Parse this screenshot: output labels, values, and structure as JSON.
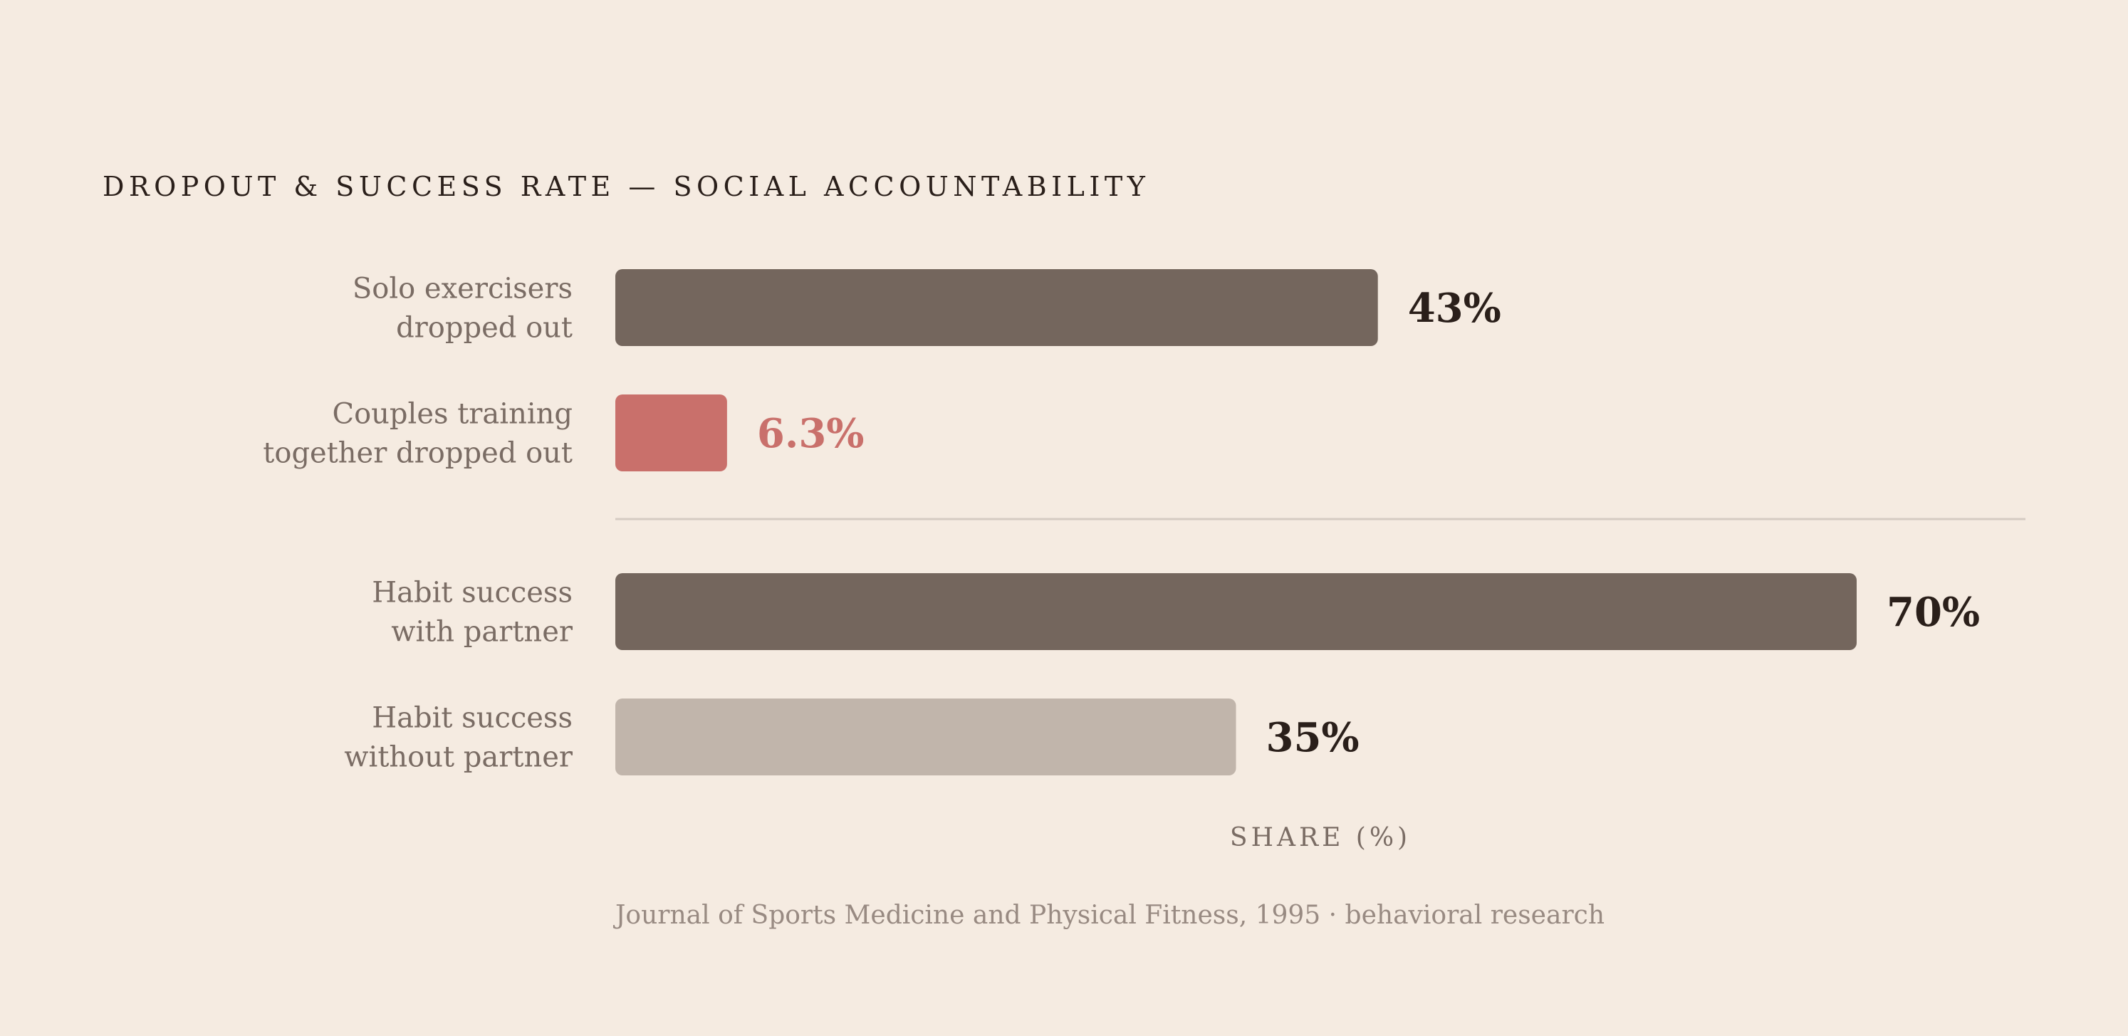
{
  "chart_data": {
    "type": "bar",
    "orientation": "horizontal",
    "title": "DROPOUT & SUCCESS RATE — SOCIAL ACCOUNTABILITY",
    "xlabel": "SHARE (%)",
    "xlim": [
      0,
      80
    ],
    "grid": false,
    "source": "Journal of Sports Medicine and Physical Fitness, 1995 · behavioral research",
    "groups": [
      {
        "bars": [
          {
            "label_lines": [
              "Solo exercisers",
              "dropped out"
            ],
            "value": 43,
            "value_label": "43%",
            "color": "#74665d",
            "label_color": "#2a1f1a"
          },
          {
            "label_lines": [
              "Couples training",
              "together dropped out"
            ],
            "value": 6.3,
            "value_label": "6.3%",
            "color": "#c9706b",
            "label_color": "#c9706b"
          }
        ]
      },
      {
        "bars": [
          {
            "label_lines": [
              "Habit success",
              "with partner"
            ],
            "value": 70,
            "value_label": "70%",
            "color": "#74665d",
            "label_color": "#2a1f1a"
          },
          {
            "label_lines": [
              "Habit success",
              "without partner"
            ],
            "value": 35,
            "value_label": "35%",
            "color": "#c1b5ab",
            "label_color": "#2a1f1a"
          }
        ]
      }
    ]
  }
}
